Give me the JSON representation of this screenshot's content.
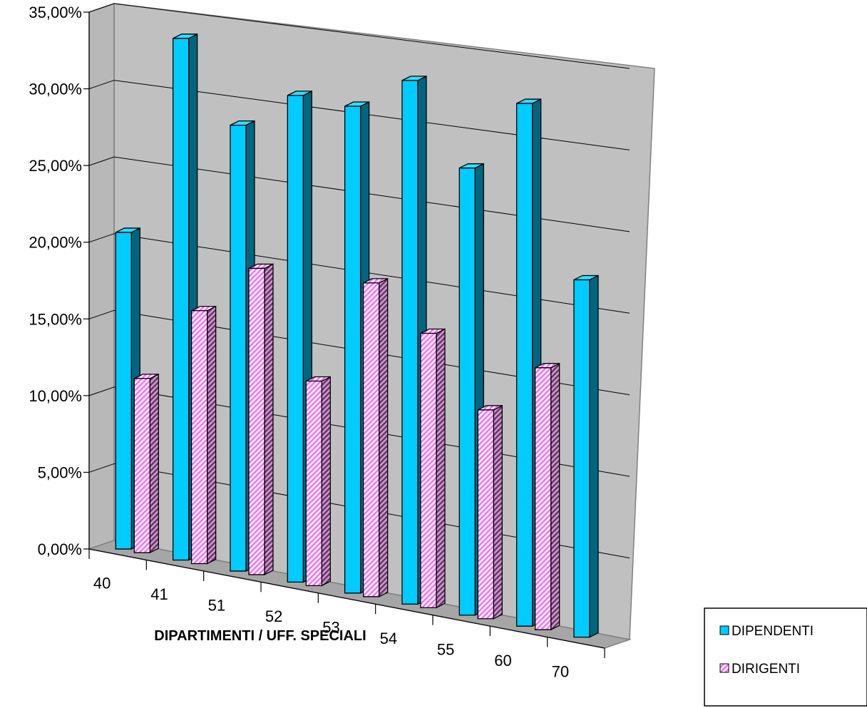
{
  "chart_data": {
    "type": "bar",
    "style": "3d-clustered-column",
    "title": "",
    "xlabel": "DIPARTIMENTI / UFF. SPECIALI",
    "ylabel": "",
    "categories": [
      "40",
      "41",
      "51",
      "52",
      "53",
      "54",
      "55",
      "60",
      "70"
    ],
    "series": [
      {
        "name": "DIPENDENTI",
        "values": [
          20.6,
          33.7,
          28.6,
          31.0,
          30.8,
          32.9,
          27.9,
          32.4,
          22.0
        ],
        "color": "#00ccff"
      },
      {
        "name": "DIRIGENTI",
        "values": [
          11.3,
          16.3,
          19.6,
          13.0,
          19.8,
          17.2,
          13.0,
          16.2,
          null
        ],
        "color": "#ff99ff"
      }
    ],
    "ylim": [
      0,
      35
    ],
    "y_ticks": [
      "0,00%",
      "5,00%",
      "10,00%",
      "15,00%",
      "20,00%",
      "25,00%",
      "30,00%",
      "35,00%"
    ],
    "grid": true,
    "wall_color": "#c0c0c0",
    "legend_position": "right"
  }
}
